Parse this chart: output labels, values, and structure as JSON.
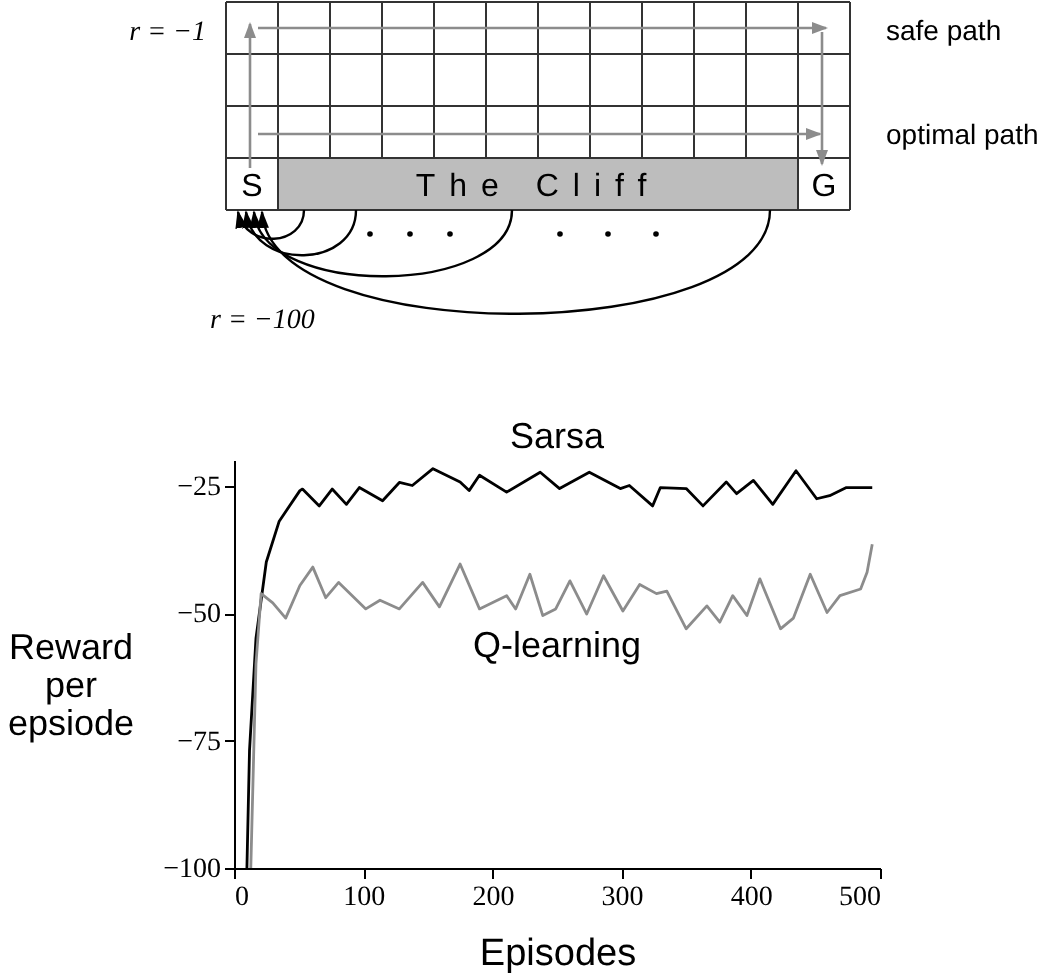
{
  "chart_data": {
    "type": "line",
    "xlabel": "Episodes",
    "ylabel": "Reward per epsiode",
    "annotations": [
      "r = −1",
      "safe path",
      "optimal path",
      "S",
      "The Cliff",
      "G",
      "r = −100"
    ],
    "xlim": [
      0,
      500
    ],
    "ylim": [
      -100,
      -20
    ],
    "xticks": [
      0,
      100,
      200,
      300,
      400,
      500
    ],
    "yticks": [
      -100,
      -75,
      -50,
      -25
    ],
    "grid": false,
    "legend": false,
    "series": [
      {
        "name": "Sarsa",
        "color": "#000000",
        "x": [
          10,
          12,
          17,
          25,
          35,
          51,
          53,
          66,
          76,
          87,
          97,
          115,
          128,
          138,
          154,
          175,
          182,
          190,
          211,
          237,
          252,
          275,
          299,
          306,
          324,
          330,
          350,
          363,
          381,
          389,
          402,
          417,
          435,
          451,
          461,
          474,
          494
        ],
        "values": [
          -100,
          -77,
          -55,
          -40,
          -32,
          -26,
          -25.7,
          -29,
          -25.7,
          -28.7,
          -25.4,
          -28,
          -24.4,
          -25,
          -21.7,
          -24.3,
          -26,
          -23,
          -26.3,
          -22.4,
          -25.6,
          -22.4,
          -25.6,
          -25,
          -29,
          -25.4,
          -25.6,
          -29,
          -24.3,
          -26.6,
          -24,
          -28.7,
          -22.1,
          -27.6,
          -27,
          -25.4,
          -25.4
        ]
      },
      {
        "name": "Q-learning",
        "color": "#8c8c8c",
        "x": [
          13,
          17,
          21,
          30,
          40,
          51,
          61,
          71,
          81,
          102,
          113,
          128,
          146,
          159,
          175,
          190,
          211,
          218,
          229,
          239,
          249,
          260,
          273,
          286,
          301,
          314,
          327,
          335,
          350,
          366,
          376,
          386,
          397,
          407,
          423,
          433,
          446,
          459,
          469,
          485,
          490,
          494
        ],
        "values": [
          -100,
          -60,
          -46.2,
          -48,
          -51,
          -44.6,
          -41,
          -47,
          -44,
          -49.2,
          -47.5,
          -49.2,
          -44,
          -48.8,
          -40.4,
          -49.2,
          -46.6,
          -49.2,
          -42.4,
          -50.5,
          -49.2,
          -43.7,
          -50.2,
          -42.7,
          -49.6,
          -44.4,
          -46.2,
          -45.7,
          -53.1,
          -48.6,
          -51.8,
          -46.6,
          -50.5,
          -43.3,
          -53.1,
          -51,
          -42.4,
          -49.9,
          -46.6,
          -45.3,
          -42,
          -36.5
        ]
      }
    ]
  }
}
